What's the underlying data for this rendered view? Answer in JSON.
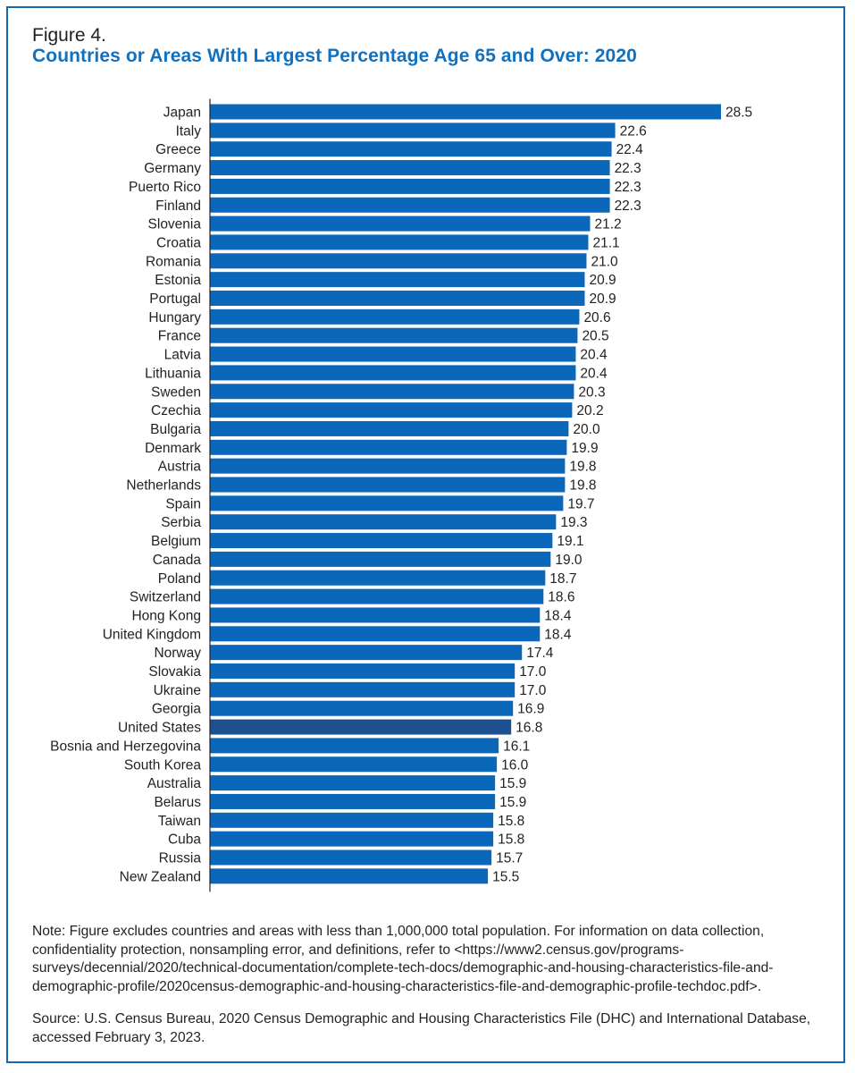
{
  "figure": {
    "label": "Figure 4.",
    "title": "Countries or Areas With Largest Percentage Age 65 and Over: 2020"
  },
  "chart_data": {
    "type": "bar",
    "orientation": "horizontal",
    "title": "Countries or Areas With Largest Percentage Age 65 and Over: 2020",
    "xlabel": "",
    "ylabel": "",
    "highlight": "United States",
    "colors": {
      "bar": "#0b67b9",
      "highlight": "#1e4f8f",
      "axis": "#231f20"
    },
    "categories": [
      "Japan",
      "Italy",
      "Greece",
      "Germany",
      "Puerto Rico",
      "Finland",
      "Slovenia",
      "Croatia",
      "Romania",
      "Estonia",
      "Portugal",
      "Hungary",
      "France",
      "Latvia",
      "Lithuania",
      "Sweden",
      "Czechia",
      "Bulgaria",
      "Denmark",
      "Austria",
      "Netherlands",
      "Spain",
      "Serbia",
      "Belgium",
      "Canada",
      "Poland",
      "Switzerland",
      "Hong Kong",
      "United Kingdom",
      "Norway",
      "Slovakia",
      "Ukraine",
      "Georgia",
      "United States",
      "Bosnia and Herzegovina",
      "South Korea",
      "Australia",
      "Belarus",
      "Taiwan",
      "Cuba",
      "Russia",
      "New Zealand"
    ],
    "values": [
      28.5,
      22.6,
      22.4,
      22.3,
      22.3,
      22.3,
      21.2,
      21.1,
      21.0,
      20.9,
      20.9,
      20.6,
      20.5,
      20.4,
      20.4,
      20.3,
      20.2,
      20.0,
      19.9,
      19.8,
      19.8,
      19.7,
      19.3,
      19.1,
      19.0,
      18.7,
      18.6,
      18.4,
      18.4,
      17.4,
      17.0,
      17.0,
      16.9,
      16.8,
      16.1,
      16.0,
      15.9,
      15.9,
      15.8,
      15.8,
      15.7,
      15.5
    ],
    "value_labels": [
      "28.5",
      "22.6",
      "22.4",
      "22.3",
      "22.3",
      "22.3",
      "21.2",
      "21.1",
      "21.0",
      "20.9",
      "20.9",
      "20.6",
      "20.5",
      "20.4",
      "20.4",
      "20.3",
      "20.2",
      "20.0",
      "19.9",
      "19.8",
      "19.8",
      "19.7",
      "19.3",
      "19.1",
      "19.0",
      "18.7",
      "18.6",
      "18.4",
      "18.4",
      "17.4",
      "17.0",
      "17.0",
      "16.9",
      "16.8",
      "16.1",
      "16.0",
      "15.9",
      "15.9",
      "15.8",
      "15.8",
      "15.7",
      "15.5"
    ],
    "xlim": [
      0,
      28.5
    ]
  },
  "note": "Note: Figure excludes countries and areas with less than 1,000,000 total population. For information on data collection, confidentiality protection, nonsampling error, and definitions, refer to <https://www2.census.gov/programs-surveys/decennial/2020/technical-documentation/complete-tech-docs/demographic-and-housing-characteristics-file-and-demographic-profile/2020census-demographic-and-housing-characteristics-file-and-demographic-profile-techdoc.pdf>.",
  "source": "Source: U.S. Census Bureau, 2020 Census Demographic and Housing Characteristics File (DHC) and International Database, accessed February 3, 2023."
}
